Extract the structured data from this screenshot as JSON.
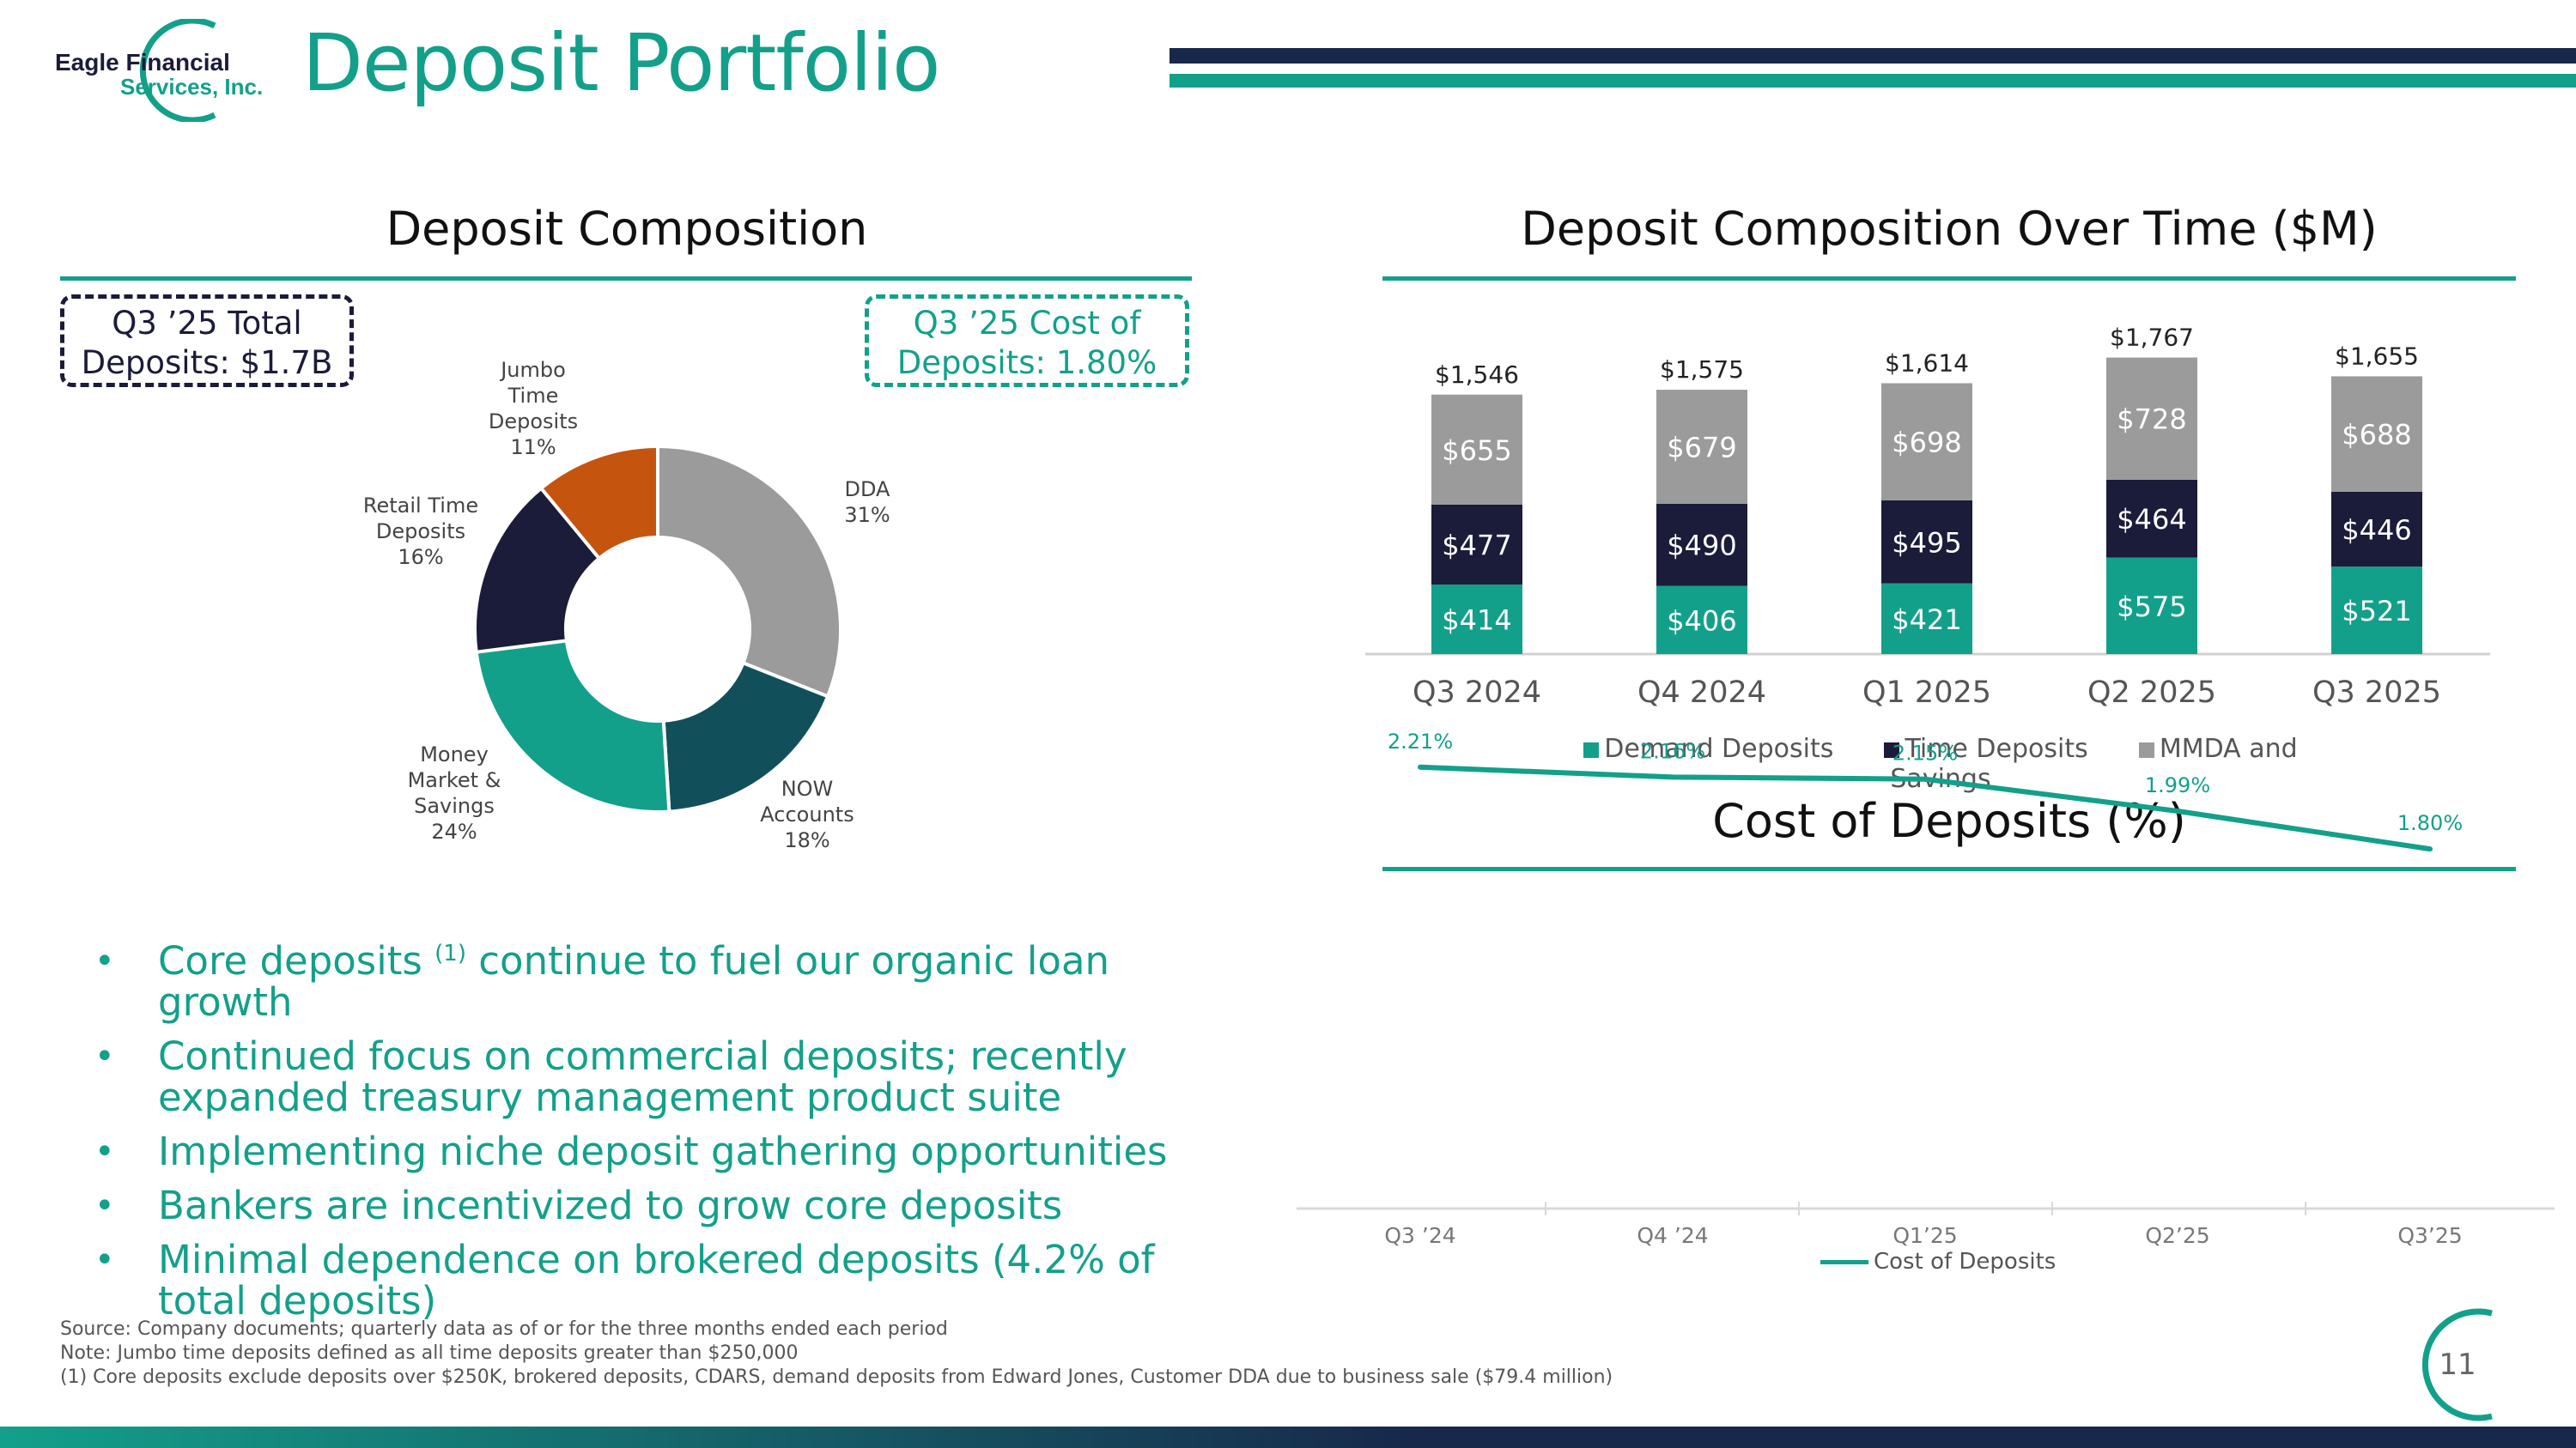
{
  "header": {
    "logo_line1": "Eagle Financial",
    "logo_line2": "Services, Inc.",
    "title": "Deposit Portfolio"
  },
  "left": {
    "section_title": "Deposit Composition",
    "callout_total_line1": "Q3 ’25 Total",
    "callout_total_line2": "Deposits: $1.7B",
    "callout_cost_line1": "Q3 ’25 Cost of",
    "callout_cost_line2": "Deposits: 1.80%"
  },
  "bullets": [
    {
      "text": "Core deposits",
      "sup": "(1)",
      "rest": " continue to fuel our organic loan growth"
    },
    {
      "text": "Continued focus on commercial deposits; recently expanded treasury management product suite"
    },
    {
      "text": "Implementing niche deposit gathering opportunities"
    },
    {
      "text": "Bankers are incentivized to grow core deposits"
    },
    {
      "text": "Minimal dependence on brokered deposits (4.2% of total deposits)"
    }
  ],
  "footnotes": {
    "source": "Source: Company documents; quarterly data as of or for the three months ended each period",
    "note": "Note: Jumbo time deposits defined as all time deposits greater than $250,000",
    "one": "(1)    Core deposits exclude deposits over $250K, brokered deposits, CDARS, demand deposits from Edward Jones, Customer DDA due to business sale ($79.4 million)"
  },
  "page_number": "11",
  "colors": {
    "teal": "#13a08a",
    "navy": "#1b1b3a",
    "gray": "#9b9b9b",
    "dark_teal": "#11505a",
    "orange": "#c5540f"
  },
  "chart_data": [
    {
      "type": "pie",
      "title": "Deposit Composition",
      "slices": [
        {
          "label": "DDA",
          "value": 31,
          "text": "31%",
          "color": "#9b9b9b"
        },
        {
          "label": "NOW Accounts",
          "value": 18,
          "text": "18%",
          "color": "#11505a"
        },
        {
          "label": "Money Market & Savings",
          "value": 24,
          "text": "24%",
          "color": "#13a08a"
        },
        {
          "label": "Retail Time Deposits",
          "value": 16,
          "text": "16%",
          "color": "#1b1b3a"
        },
        {
          "label": "Jumbo Time Deposits",
          "value": 11,
          "text": "11%",
          "color": "#c5540f"
        }
      ],
      "label_lines": {
        "dda": [
          "DDA",
          "31%"
        ],
        "now": [
          "NOW",
          "Accounts",
          "18%"
        ],
        "mm": [
          "Money",
          "Market &",
          "Savings",
          "24%"
        ],
        "retail": [
          "Retail Time",
          "Deposits",
          "16%"
        ],
        "jumbo": [
          "Jumbo",
          "Time",
          "Deposits",
          "11%"
        ]
      }
    },
    {
      "type": "bar",
      "stacked": true,
      "title": "Deposit Composition Over Time ($M)",
      "categories": [
        "Q3 2024",
        "Q4 2024",
        "Q1 2025",
        "Q2 2025",
        "Q3 2025"
      ],
      "series": [
        {
          "name": "Demand Deposits",
          "values": [
            414,
            406,
            421,
            575,
            521
          ],
          "labels": [
            "$414",
            "$406",
            "$421",
            "$575",
            "$521"
          ],
          "color": "#13a08a"
        },
        {
          "name": "Time Deposits",
          "values": [
            477,
            490,
            495,
            464,
            446
          ],
          "labels": [
            "$477",
            "$490",
            "$495",
            "$464",
            "$446"
          ],
          "color": "#1b1b3a"
        },
        {
          "name": "MMDA and Savings",
          "values": [
            655,
            679,
            698,
            728,
            688
          ],
          "labels": [
            "$655",
            "$679",
            "$698",
            "$728",
            "$688"
          ],
          "color": "#9b9b9b"
        }
      ],
      "totals": [
        "$1,546",
        "$1,575",
        "$1,614",
        "$1,767",
        "$1,655"
      ],
      "ylim": [
        0,
        1850
      ]
    },
    {
      "type": "line",
      "title": "Cost of Deposits (%)",
      "categories": [
        "Q3 ’24",
        "Q4 ’24",
        "Q1’25",
        "Q2’25",
        "Q3’25"
      ],
      "series": [
        {
          "name": "Cost of Deposits",
          "values": [
            2.21,
            2.16,
            2.15,
            1.99,
            1.8
          ],
          "labels": [
            "2.21%",
            "2.16%",
            "2.15%",
            "1.99%",
            "1.80%"
          ],
          "color": "#13a08a"
        }
      ],
      "ylim": [
        0.0,
        2.6
      ]
    }
  ]
}
